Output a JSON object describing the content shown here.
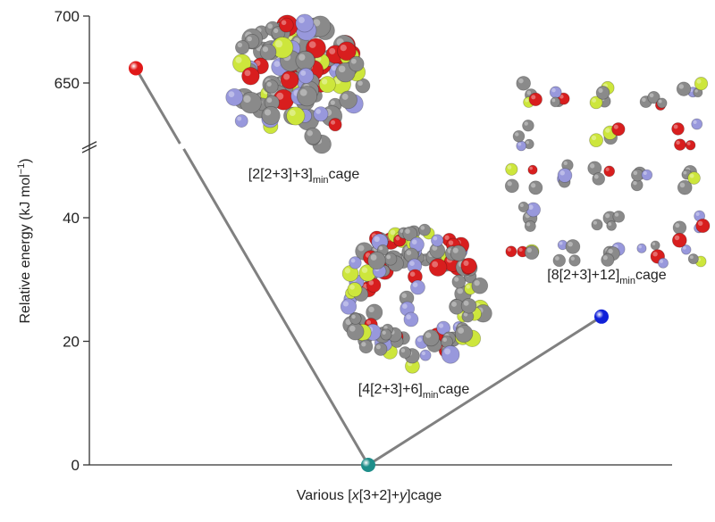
{
  "chart_data": {
    "type": "line",
    "xlabel": {
      "pre": "Various [",
      "italic1": "x",
      "mid": "[3+2]+",
      "italic2": "y",
      "post": "]cage"
    },
    "ylabel": {
      "main": "Relative energy (kJ mol",
      "sup": "−1",
      "close": ")"
    },
    "yaxis_lower": {
      "range": [
        0,
        50
      ],
      "ticks": [
        0,
        20,
        40
      ],
      "tick_labels": [
        "0",
        "20",
        "40"
      ]
    },
    "yaxis_upper": {
      "range": [
        610,
        700
      ],
      "ticks": [
        650,
        700
      ],
      "tick_labels": [
        "650",
        "700"
      ]
    },
    "axis_break": true,
    "grid": false,
    "series": [
      {
        "points": [
          {
            "x": 0,
            "y": 661,
            "label": "[2[2+3]+3]",
            "label_sub": "min",
            "label_post": "cage",
            "color": "#e01818"
          },
          {
            "x": 1,
            "y": 0,
            "label": "[4[2+3]+6]",
            "label_sub": "min",
            "label_post": "cage",
            "color": "#1e8e8a"
          },
          {
            "x": 2,
            "y": 24,
            "label": "[8[2+3]+12]",
            "label_sub": "min",
            "label_post": "cage",
            "color": "#1020d8"
          }
        ]
      }
    ],
    "line_color": "#808080"
  },
  "molecule_colors": {
    "carbon": "#8a8a8a",
    "oxygen": "#d81e1e",
    "nitrogen": "#9898dc",
    "fluorine": "#cde63c"
  }
}
